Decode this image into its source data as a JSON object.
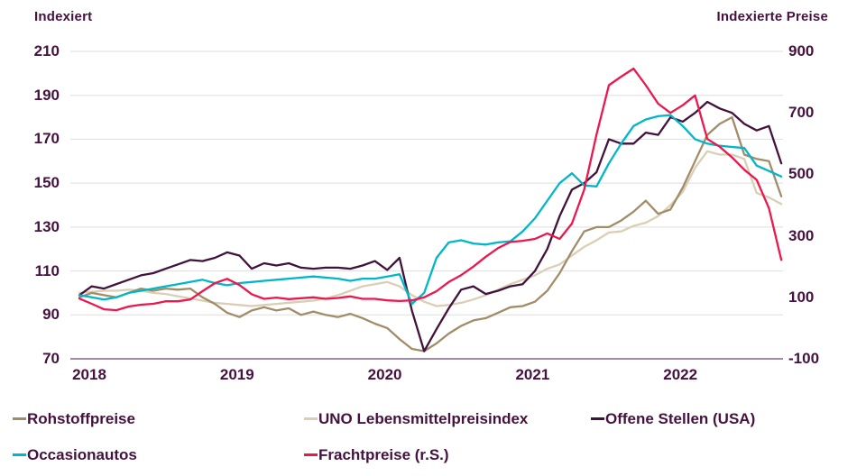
{
  "chart_data": {
    "type": "line",
    "title": "",
    "x_unit": "month",
    "x_range_label": "Jan 2018 - Okt 2022",
    "x_tick_labels": [
      "2018",
      "2019",
      "2020",
      "2021",
      "2022"
    ],
    "grid": true,
    "legend_position": "bottom",
    "left_axis": {
      "title": "Indexiert",
      "range": [
        70,
        210
      ],
      "ticks": [
        210,
        190,
        170,
        150,
        130,
        110,
        90,
        70
      ]
    },
    "right_axis": {
      "title": "Indexierte Preise",
      "range": [
        -100,
        900
      ],
      "ticks": [
        900,
        700,
        500,
        300,
        100,
        -100
      ]
    },
    "series": [
      {
        "name": "Rohstoffpreise",
        "axis": "left",
        "color": "#a28c68",
        "values": [
          98,
          100,
          99,
          98,
          100,
          102,
          101,
          102,
          101.5,
          102,
          98,
          95,
          91,
          89,
          92,
          93.5,
          92,
          93,
          90,
          91.5,
          90,
          89,
          90.5,
          88.5,
          86,
          84,
          79,
          74.5,
          73.5,
          77,
          81.5,
          85,
          87.5,
          88.5,
          91,
          93.5,
          94,
          96,
          101,
          109,
          119,
          128,
          130,
          130,
          133,
          137,
          142,
          136,
          138,
          148,
          160,
          172,
          177,
          180,
          163,
          161,
          160,
          144
        ]
      },
      {
        "name": "UNO Lebensmittelpreisindex",
        "axis": "left",
        "color": "#d9cfb4",
        "values": [
          100,
          100.5,
          101,
          101,
          101.5,
          101,
          100,
          99.5,
          98.5,
          97.5,
          96.5,
          95.5,
          95,
          94.5,
          94,
          94.5,
          95,
          95.5,
          96,
          96.5,
          97.5,
          99,
          101,
          103,
          104,
          105,
          103,
          99,
          96,
          94,
          94.5,
          95.5,
          97,
          99,
          101.5,
          104,
          106,
          108,
          111,
          113,
          117,
          121,
          124,
          127.5,
          128,
          130.5,
          132,
          135,
          140,
          146,
          157,
          164.5,
          163,
          163,
          161,
          145.5,
          143.5,
          140.5
        ]
      },
      {
        "name": "Offene Stellen (USA)",
        "axis": "left",
        "color": "#41123c",
        "values": [
          99,
          103,
          102,
          104,
          106,
          108,
          109,
          111,
          113,
          115,
          114.5,
          116,
          118.5,
          117,
          111,
          113.5,
          112.5,
          113.5,
          111.5,
          111,
          111.5,
          111.5,
          111,
          112.5,
          114.5,
          110.5,
          116,
          92,
          73.5,
          83.5,
          93,
          101.5,
          103,
          99.5,
          101,
          103,
          104,
          110,
          120,
          135,
          147,
          150,
          155,
          170,
          168,
          168,
          173,
          172,
          180,
          178,
          182,
          187,
          184,
          182,
          177,
          174,
          176,
          159
        ]
      },
      {
        "name": "Occasionautos",
        "axis": "left",
        "color": "#00b6c9",
        "values": [
          99,
          98,
          97,
          98,
          100,
          101,
          102,
          103,
          104,
          105,
          106,
          104.5,
          103.5,
          104.5,
          105,
          105.5,
          106,
          106.5,
          107,
          107.5,
          107,
          106.5,
          105.5,
          106.5,
          106.5,
          107.5,
          108.5,
          95,
          100,
          116,
          123,
          124,
          122.5,
          122,
          123,
          123.5,
          128,
          134,
          142,
          150,
          154.5,
          149,
          148.5,
          159,
          168,
          176,
          179,
          180.5,
          181,
          176,
          170,
          168,
          167,
          166.5,
          166,
          158,
          155.5,
          153
        ]
      },
      {
        "name": "Frachtpreise (r.S.)",
        "axis": "right",
        "color": "#ec174d",
        "values": [
          96,
          79,
          61,
          58,
          70,
          76,
          79,
          87,
          87,
          93,
          120,
          146,
          160,
          140,
          110,
          95,
          99,
          94,
          97,
          100,
          95,
          98,
          103,
          95,
          95,
          90,
          88,
          90,
          100,
          120,
          150,
          172,
          200,
          232,
          260,
          280,
          284,
          290,
          308,
          290,
          340,
          450,
          630,
          790,
          818,
          844,
          790,
          730,
          700,
          725,
          757,
          615,
          590,
          555,
          515,
          482,
          390,
          222
        ]
      }
    ]
  },
  "style": {
    "text_color": "#45123f",
    "grid_color": "#dedede",
    "baseline_color": "#7d6392",
    "background": "#ffffff"
  }
}
